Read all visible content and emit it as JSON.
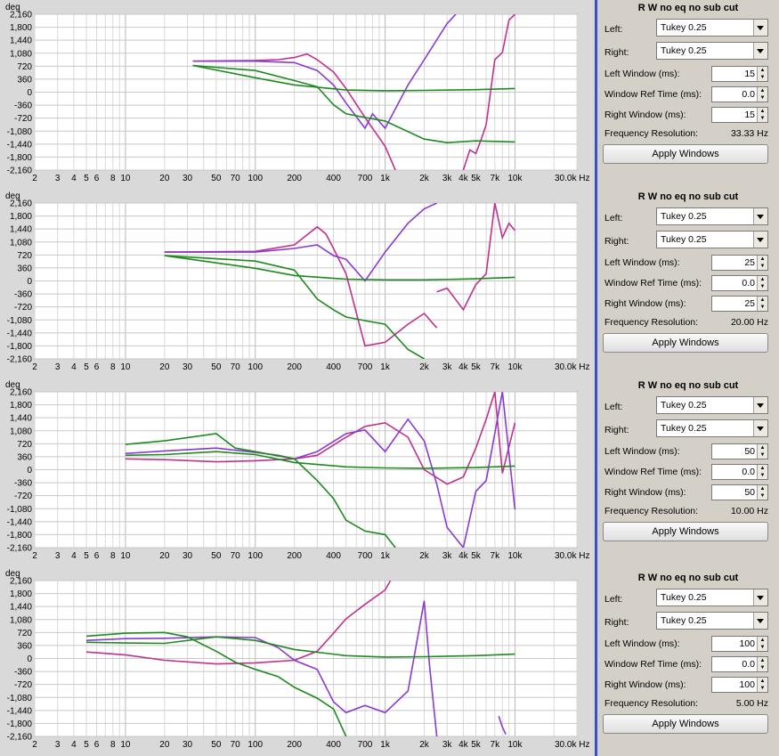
{
  "axes": {
    "y_unit": "deg",
    "y_ticks": [
      "2,160",
      "1,800",
      "1,440",
      "1,080",
      "720",
      "360",
      "0",
      "-360",
      "-720",
      "-1,080",
      "-1,440",
      "-1,800",
      "-2,160"
    ],
    "x_ticks": [
      "2",
      "3",
      "4",
      "5",
      "6",
      "8",
      "10",
      "20",
      "30",
      "50",
      "70",
      "100",
      "200",
      "400",
      "700",
      "1k",
      "2k",
      "3k",
      "4k",
      "5k",
      "7k",
      "10k",
      "30.0k Hz"
    ]
  },
  "colors": {
    "purple": "#8a3ad0",
    "magenta": "#c0308e",
    "green": "#1e8a1e",
    "separator": "#3a4fc8"
  },
  "panels": [
    {
      "title": "R W no eq no sub cut",
      "left_label": "Left:",
      "left_value": "Tukey 0.25",
      "right_label": "Right:",
      "right_value": "Tukey 0.25",
      "left_window_label": "Left Window (ms):",
      "left_window_value": "15",
      "ref_label": "Window Ref Time (ms):",
      "ref_value": "0.0",
      "right_window_label": "Right Window (ms):",
      "right_window_value": "15",
      "freq_label": "Frequency Resolution:",
      "freq_value": "33.33 Hz",
      "apply_label": "Apply Windows"
    },
    {
      "title": "R W no eq no sub cut",
      "left_label": "Left:",
      "left_value": "Tukey 0.25",
      "right_label": "Right:",
      "right_value": "Tukey 0.25",
      "left_window_label": "Left Window (ms):",
      "left_window_value": "25",
      "ref_label": "Window Ref Time (ms):",
      "ref_value": "0.0",
      "right_window_label": "Right Window (ms):",
      "right_window_value": "25",
      "freq_label": "Frequency Resolution:",
      "freq_value": "20.00 Hz",
      "apply_label": "Apply Windows"
    },
    {
      "title": "R W no eq no sub cut",
      "left_label": "Left:",
      "left_value": "Tukey 0.25",
      "right_label": "Right:",
      "right_value": "Tukey 0.25",
      "left_window_label": "Left Window (ms):",
      "left_window_value": "50",
      "ref_label": "Window Ref Time (ms):",
      "ref_value": "0.0",
      "right_window_label": "Right Window (ms):",
      "right_window_value": "50",
      "freq_label": "Frequency Resolution:",
      "freq_value": "10.00 Hz",
      "apply_label": "Apply Windows"
    },
    {
      "title": "R W no eq no sub cut",
      "left_label": "Left:",
      "left_value": "Tukey 0.25",
      "right_label": "Right:",
      "right_value": "Tukey 0.25",
      "left_window_label": "Left Window (ms):",
      "left_window_value": "100",
      "ref_label": "Window Ref Time (ms):",
      "ref_value": "0.0",
      "right_window_label": "Right Window (ms):",
      "right_window_value": "100",
      "freq_label": "Frequency Resolution:",
      "freq_value": "5.00 Hz",
      "apply_label": "Apply Windows"
    }
  ],
  "chart_data": [
    {
      "type": "line",
      "x_scale": "log",
      "xlim": [
        2,
        30000
      ],
      "ylim": [
        -2160,
        2160
      ],
      "ylabel": "deg",
      "series": [
        {
          "color": "magenta",
          "x": [
            33,
            100,
            150,
            200,
            250,
            300,
            400,
            500,
            700,
            1000,
            1200
          ],
          "y": [
            860,
            880,
            900,
            960,
            1060,
            900,
            560,
            100,
            -700,
            -1500,
            -2160
          ]
        },
        {
          "color": "purple",
          "x": [
            33,
            100,
            200,
            300,
            400,
            500,
            700,
            800,
            1000,
            1500,
            2000,
            3000,
            3500
          ],
          "y": [
            860,
            860,
            820,
            600,
            200,
            -300,
            -1000,
            -600,
            -1000,
            200,
            900,
            1900,
            2160
          ]
        },
        {
          "color": "magenta",
          "x": [
            4000,
            4500,
            5000,
            5500,
            6000,
            7000,
            8000,
            9000,
            10000
          ],
          "y": [
            -2160,
            -1600,
            -1700,
            -1300,
            -900,
            900,
            1100,
            2000,
            2160
          ]
        },
        {
          "color": "green",
          "x": [
            33,
            100,
            200,
            300,
            400,
            500,
            700,
            1000,
            2000,
            3000,
            5000,
            10000
          ],
          "y": [
            740,
            600,
            320,
            150,
            -350,
            -600,
            -700,
            -800,
            -1300,
            -1400,
            -1350,
            -1380
          ]
        },
        {
          "color": "green",
          "x": [
            33,
            100,
            200,
            500,
            1000,
            2000,
            5000,
            10000
          ],
          "y": [
            740,
            400,
            200,
            60,
            40,
            50,
            70,
            100
          ]
        }
      ]
    },
    {
      "type": "line",
      "x_scale": "log",
      "xlim": [
        2,
        30000
      ],
      "ylim": [
        -2160,
        2160
      ],
      "ylabel": "deg",
      "series": [
        {
          "color": "magenta",
          "x": [
            20,
            100,
            200,
            300,
            350,
            400,
            500,
            700,
            1000,
            1500,
            2000,
            2500
          ],
          "y": [
            800,
            820,
            1000,
            1500,
            1300,
            900,
            200,
            -1800,
            -1700,
            -1200,
            -900,
            -1300
          ]
        },
        {
          "color": "purple",
          "x": [
            20,
            100,
            200,
            300,
            400,
            500,
            700,
            1000,
            1500,
            2000,
            2500
          ],
          "y": [
            800,
            800,
            900,
            1000,
            700,
            600,
            0,
            800,
            1600,
            2000,
            2160
          ]
        },
        {
          "color": "magenta",
          "x": [
            2500,
            3000,
            4000,
            5000,
            6000,
            7000,
            8000,
            9000,
            10000
          ],
          "y": [
            -300,
            -200,
            -800,
            -100,
            200,
            2160,
            1200,
            1600,
            1400
          ]
        },
        {
          "color": "green",
          "x": [
            20,
            100,
            200,
            300,
            400,
            500,
            700,
            1000,
            1500,
            2000
          ],
          "y": [
            700,
            550,
            300,
            -500,
            -800,
            -1000,
            -1100,
            -1200,
            -1900,
            -2160
          ]
        },
        {
          "color": "green",
          "x": [
            20,
            50,
            100,
            200,
            500,
            1000,
            2000,
            5000,
            10000
          ],
          "y": [
            700,
            500,
            350,
            150,
            50,
            30,
            30,
            60,
            100
          ]
        }
      ]
    },
    {
      "type": "line",
      "x_scale": "log",
      "xlim": [
        2,
        30000
      ],
      "ylim": [
        -2160,
        2160
      ],
      "ylabel": "deg",
      "series": [
        {
          "color": "magenta",
          "x": [
            10,
            20,
            50,
            100,
            200,
            300,
            500,
            700,
            1000,
            1500,
            2000,
            3000,
            4000,
            5000,
            6000,
            7000,
            8000,
            10000
          ],
          "y": [
            300,
            280,
            220,
            250,
            300,
            400,
            900,
            1200,
            1300,
            900,
            0,
            -400,
            -200,
            600,
            1400,
            2160,
            -100,
            1300
          ]
        },
        {
          "color": "purple",
          "x": [
            10,
            20,
            50,
            100,
            150,
            200,
            300,
            500,
            700,
            1000,
            1500,
            2000,
            2500,
            3000,
            4000,
            5000,
            6000,
            8000,
            10000
          ],
          "y": [
            450,
            520,
            600,
            480,
            400,
            300,
            500,
            1000,
            1100,
            500,
            1400,
            800,
            -400,
            -1600,
            -2160,
            -600,
            -300,
            2160,
            -1100
          ]
        },
        {
          "color": "green",
          "x": [
            10,
            20,
            50,
            70,
            100,
            200,
            300,
            400,
            500,
            700,
            1000,
            1200
          ],
          "y": [
            700,
            800,
            1000,
            600,
            500,
            300,
            -300,
            -800,
            -1400,
            -1700,
            -1800,
            -2160
          ]
        },
        {
          "color": "green",
          "x": [
            10,
            20,
            50,
            100,
            200,
            500,
            1000,
            2000,
            5000,
            10000
          ],
          "y": [
            400,
            420,
            500,
            420,
            200,
            80,
            50,
            40,
            60,
            100
          ]
        }
      ]
    },
    {
      "type": "line",
      "x_scale": "log",
      "xlim": [
        2,
        30000
      ],
      "ylim": [
        -2160,
        2160
      ],
      "ylabel": "deg",
      "series": [
        {
          "color": "magenta",
          "x": [
            5,
            10,
            20,
            50,
            100,
            200,
            300,
            400,
            500,
            700,
            1000,
            1100
          ],
          "y": [
            180,
            100,
            -50,
            -150,
            -120,
            -50,
            200,
            700,
            1100,
            1500,
            1900,
            2160
          ]
        },
        {
          "color": "purple",
          "x": [
            5,
            10,
            20,
            50,
            100,
            150,
            200,
            300,
            400,
            500,
            700,
            1000,
            1500,
            2000,
            2200,
            2500
          ],
          "y": [
            500,
            550,
            560,
            600,
            580,
            300,
            -50,
            -300,
            -1200,
            -1500,
            -1300,
            -1500,
            -900,
            1600,
            -200,
            -2160
          ]
        },
        {
          "color": "purple",
          "x": [
            7500,
            8000,
            8500
          ],
          "y": [
            -1600,
            -1900,
            -2100
          ]
        },
        {
          "color": "green",
          "x": [
            5,
            10,
            20,
            30,
            50,
            70,
            100,
            150,
            200,
            300,
            400,
            500
          ],
          "y": [
            620,
            700,
            720,
            600,
            200,
            -100,
            -300,
            -500,
            -800,
            -1100,
            -1400,
            -2160
          ]
        },
        {
          "color": "green",
          "x": [
            5,
            10,
            20,
            50,
            100,
            200,
            500,
            1000,
            2000,
            5000,
            10000
          ],
          "y": [
            450,
            430,
            420,
            600,
            500,
            250,
            80,
            40,
            50,
            80,
            120
          ]
        }
      ]
    }
  ]
}
